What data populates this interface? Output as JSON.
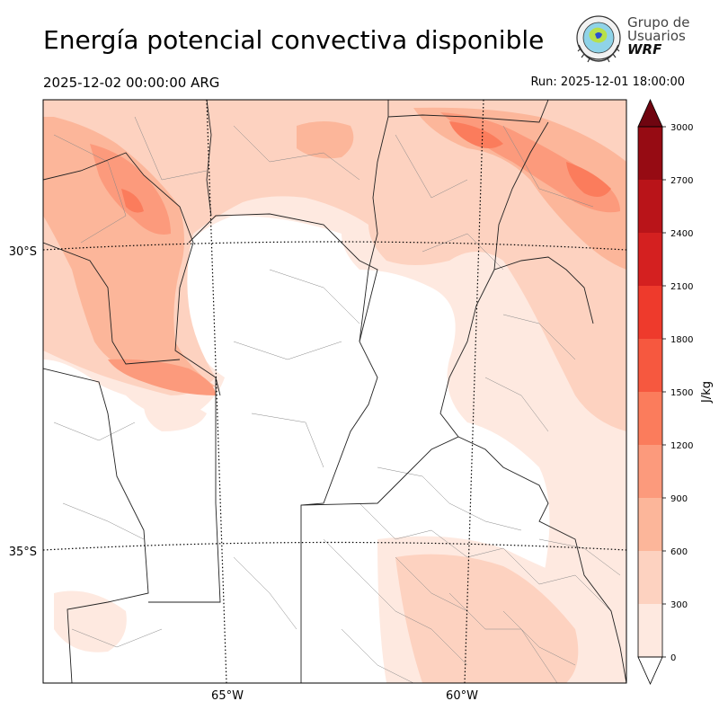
{
  "header": {
    "title": "Energía potencial convectiva disponible",
    "valid_time": "2025-12-02 00:00:00 ARG",
    "run_time": "Run: 2025-12-01 18:00:00"
  },
  "logo": {
    "line1": "Grupo de",
    "line2": "Usuarios",
    "line3": "WRF"
  },
  "map": {
    "lat_labels": [
      "30°S",
      "35°S"
    ],
    "lon_labels": [
      "65°W",
      "60°W"
    ]
  },
  "colorbar": {
    "unit": "J/kg",
    "levels": [
      0,
      300,
      600,
      900,
      1200,
      1500,
      1800,
      2100,
      2400,
      2700,
      3000
    ],
    "tick_labels": [
      "0",
      "300",
      "600",
      "900",
      "1200",
      "1500",
      "1800",
      "2100",
      "2400",
      "2700",
      "3000"
    ],
    "colors": [
      "#fee9e0",
      "#fdd2c0",
      "#fcb69a",
      "#fc9a7c",
      "#fb7c5c",
      "#f6583f",
      "#ee3a2c",
      "#d42020",
      "#b91419",
      "#960b13",
      "#6f0510"
    ],
    "extend": "both"
  }
}
